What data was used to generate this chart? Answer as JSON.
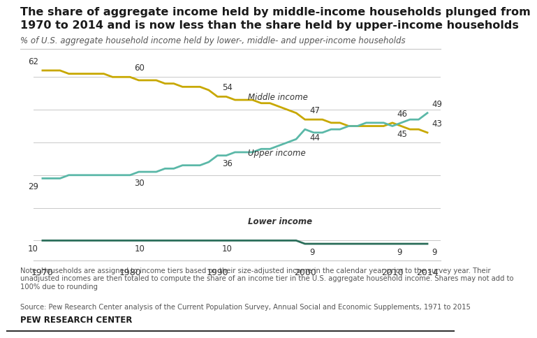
{
  "title_line1": "The share of aggregate income held by middle-income households plunged from",
  "title_line2": "1970 to 2014 and is now less than the share held by upper-income households",
  "subtitle": "% of U.S. aggregate household income held by lower-, middle- and upper-income households",
  "years": [
    1970,
    1971,
    1972,
    1973,
    1974,
    1975,
    1976,
    1977,
    1978,
    1979,
    1980,
    1981,
    1982,
    1983,
    1984,
    1985,
    1986,
    1987,
    1988,
    1989,
    1990,
    1991,
    1992,
    1993,
    1994,
    1995,
    1996,
    1997,
    1998,
    1999,
    2000,
    2001,
    2002,
    2003,
    2004,
    2005,
    2006,
    2007,
    2008,
    2009,
    2010,
    2011,
    2012,
    2013,
    2014
  ],
  "middle_income": [
    62,
    62,
    62,
    61,
    61,
    61,
    61,
    61,
    60,
    60,
    60,
    59,
    59,
    59,
    58,
    58,
    57,
    57,
    57,
    56,
    54,
    54,
    53,
    53,
    53,
    52,
    52,
    51,
    50,
    49,
    47,
    47,
    47,
    46,
    46,
    45,
    45,
    45,
    45,
    45,
    46,
    45,
    44,
    44,
    43
  ],
  "upper_income": [
    29,
    29,
    29,
    30,
    30,
    30,
    30,
    30,
    30,
    30,
    30,
    31,
    31,
    31,
    32,
    32,
    33,
    33,
    33,
    34,
    36,
    36,
    37,
    37,
    37,
    38,
    38,
    39,
    40,
    41,
    44,
    43,
    43,
    44,
    44,
    45,
    45,
    46,
    46,
    46,
    45,
    46,
    47,
    47,
    49
  ],
  "lower_income": [
    10,
    10,
    10,
    10,
    10,
    10,
    10,
    10,
    10,
    10,
    10,
    10,
    10,
    10,
    10,
    10,
    10,
    10,
    10,
    10,
    10,
    10,
    10,
    10,
    10,
    10,
    10,
    10,
    10,
    10,
    9,
    9,
    9,
    9,
    9,
    9,
    9,
    9,
    9,
    9,
    9,
    9,
    9,
    9,
    9
  ],
  "middle_color": "#C8A800",
  "upper_color": "#5BB8A8",
  "lower_color": "#2B6E5A",
  "note": "Note: Households are assigned to income tiers based on their size-adjusted income in the calendar year prior to the survey year. Their\nunadjusted incomes are then totaled to compute the share of an income tier in the U.S. aggregate household income. Shares may not add to\n100% due to rounding",
  "source": "Source: Pew Research Center analysis of the Current Population Survey, Annual Social and Economic Supplements, 1971 to 2015",
  "brand": "PEW RESEARCH CENTER",
  "background_color": "#FFFFFF",
  "grid_color": "#C8C8C8",
  "title_color": "#1a1a1a",
  "subtitle_color": "#555555",
  "label_color": "#333333",
  "note_color": "#555555"
}
